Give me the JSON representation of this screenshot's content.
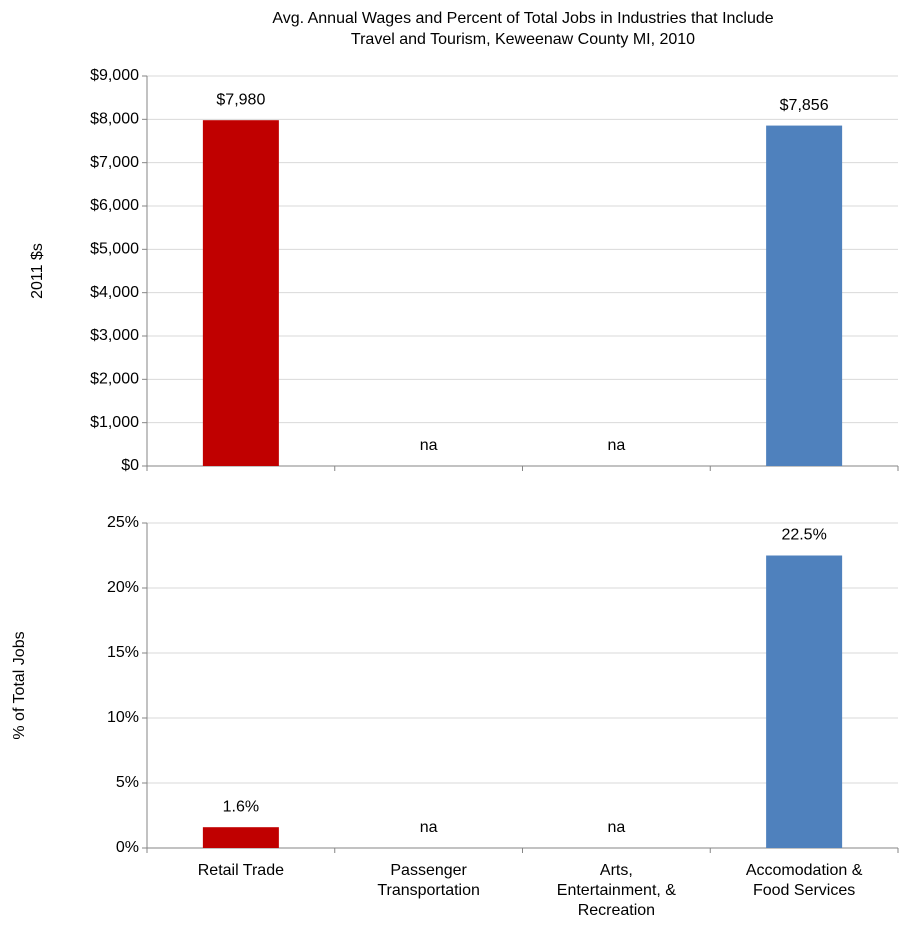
{
  "chart_data": [
    {
      "type": "bar",
      "title": [
        "Avg. Annual Wages and Percent of Total Jobs in Industries that Include",
        "Travel and Tourism, Keweenaw County MI, 2010"
      ],
      "y_label": "2011 $s",
      "values": [
        7980,
        null,
        null,
        7856
      ],
      "value_labels": [
        "$7,980",
        "na",
        "na",
        "$7,856"
      ],
      "colors": [
        "#c00000",
        "#4f81bd",
        "#4f81bd",
        "#4f81bd"
      ],
      "ylim": [
        0,
        9000
      ],
      "yticks": [
        {
          "value": 0,
          "label": "$0"
        },
        {
          "value": 1000,
          "label": "$1,000"
        },
        {
          "value": 2000,
          "label": "$2,000"
        },
        {
          "value": 3000,
          "label": "$3,000"
        },
        {
          "value": 4000,
          "label": "$4,000"
        },
        {
          "value": 5000,
          "label": "$5,000"
        },
        {
          "value": 6000,
          "label": "$6,000"
        },
        {
          "value": 7000,
          "label": "$7,000"
        },
        {
          "value": 8000,
          "label": "$8,000"
        },
        {
          "value": 9000,
          "label": "$9,000"
        }
      ],
      "grid": true
    },
    {
      "type": "bar",
      "y_label": "% of Total Jobs",
      "categories": [
        [
          "Retail Trade"
        ],
        [
          "Passenger",
          "Transportation"
        ],
        [
          "Arts,",
          "Entertainment, &",
          "Recreation"
        ],
        [
          "Accomodation &",
          "Food Services"
        ]
      ],
      "values": [
        1.6,
        null,
        null,
        22.5
      ],
      "value_labels": [
        "1.6%",
        "na",
        "na",
        "22.5%"
      ],
      "colors": [
        "#c00000",
        "#4f81bd",
        "#4f81bd",
        "#4f81bd"
      ],
      "ylim": [
        0,
        25
      ],
      "yticks": [
        {
          "value": 0,
          "label": "0%"
        },
        {
          "value": 5,
          "label": "5%"
        },
        {
          "value": 10,
          "label": "10%"
        },
        {
          "value": 15,
          "label": "15%"
        },
        {
          "value": 20,
          "label": "20%"
        },
        {
          "value": 25,
          "label": "25%"
        }
      ],
      "grid": true
    }
  ]
}
